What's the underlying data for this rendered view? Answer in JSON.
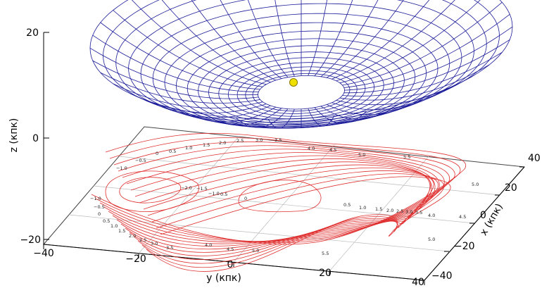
{
  "chart_data": {
    "type": "surface3d",
    "surface_color": "#1a1a99",
    "contour_color": "#e03030",
    "marker_color": "#f0e000",
    "axes": {
      "z": {
        "label": "z (кпк)",
        "ticks": [
          "20",
          "0",
          "−20"
        ],
        "range": [
          -20,
          20
        ]
      },
      "y": {
        "label": "y (кпк)",
        "ticks": [
          "−40",
          "−20",
          "0",
          "20",
          "40"
        ],
        "range": [
          -40,
          40
        ]
      },
      "x": {
        "label": "x (кпк)",
        "ticks": [
          "40",
          "20",
          "0",
          "−20",
          "−40"
        ],
        "range": [
          -40,
          40
        ]
      }
    },
    "contour_levels": [
      "−2.0",
      "−1.5",
      "−1.0",
      "−0.5",
      "0",
      "0.5",
      "1.0",
      "1.5",
      "2.0",
      "2.5",
      "3.0",
      "3.5",
      "4.0",
      "4.5",
      "5.0",
      "5.5"
    ],
    "contour_label_list": [
      "0",
      "0.5",
      "1.0",
      "1.5",
      "2.0",
      "2.5",
      "3.0",
      "3.5",
      "4.0",
      "4.5",
      "5.0",
      "5.5",
      "−0.5",
      "−1.0",
      "−2.0",
      "−1.5",
      "−1.0",
      "0.5",
      "0",
      "−1.0",
      "−0.5",
      "0",
      "0.5",
      "1.0",
      "1.5",
      "2.0",
      "2.5",
      "3.0",
      "3.5",
      "4.0",
      "4.5",
      "5.0",
      "5.5",
      "5.0",
      "0.5",
      "1.0",
      "1.5",
      "2.0",
      "2.5",
      "3.0",
      "3.5",
      "4.0",
      "4.5",
      "5.0"
    ]
  }
}
